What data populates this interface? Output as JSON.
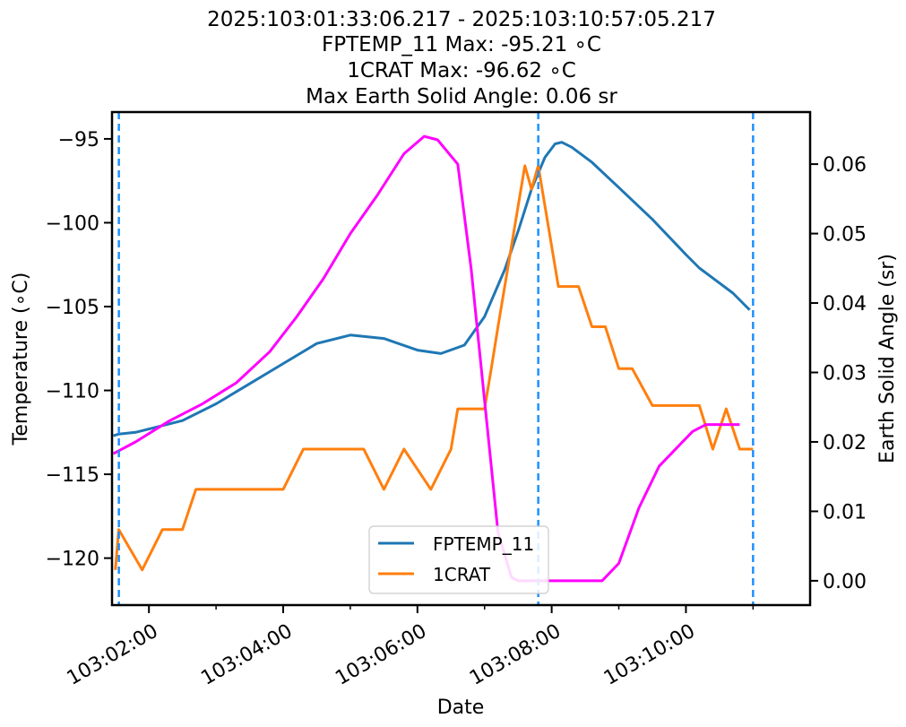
{
  "chart_data": {
    "type": "line",
    "title_lines": [
      "2025:103:01:33:06.217 - 2025:103:10:57:05.217",
      "FPTEMP_11 Max: -95.21 ∘C",
      "1CRAT Max: -96.62 ∘C",
      "Max Earth Solid Angle: 0.06 sr"
    ],
    "xlabel": "Date",
    "ylabel": "Temperature (∘C)",
    "y2label": "Earth Solid Angle (sr)",
    "xlim": [
      1.45,
      11.85
    ],
    "ylim": [
      -122.8,
      -93.4
    ],
    "y2lim": [
      -0.0035,
      0.0675
    ],
    "x_ticks": [
      {
        "value": 2,
        "label": "103:02:00"
      },
      {
        "value": 4,
        "label": "103:04:00"
      },
      {
        "value": 6,
        "label": "103:06:00"
      },
      {
        "value": 8,
        "label": "103:08:00"
      },
      {
        "value": 10,
        "label": "103:10:00"
      }
    ],
    "x_minor_ticks": [
      3,
      5,
      7,
      9,
      11
    ],
    "y_ticks": [
      {
        "value": -95,
        "label": "−95"
      },
      {
        "value": -100,
        "label": "−100"
      },
      {
        "value": -105,
        "label": "−105"
      },
      {
        "value": -110,
        "label": "−110"
      },
      {
        "value": -115,
        "label": "−115"
      },
      {
        "value": -120,
        "label": "−120"
      }
    ],
    "y2_ticks": [
      {
        "value": 0.06,
        "label": "0.06"
      },
      {
        "value": 0.05,
        "label": "0.05"
      },
      {
        "value": 0.04,
        "label": "0.04"
      },
      {
        "value": 0.03,
        "label": "0.03"
      },
      {
        "value": 0.02,
        "label": "0.02"
      },
      {
        "value": 0.01,
        "label": "0.01"
      },
      {
        "value": 0.0,
        "label": "0.00"
      }
    ],
    "vlines": [
      1.552,
      7.8,
      11.0
    ],
    "vline_color": "#1e90ff",
    "legend": {
      "placement": "lower-center",
      "entries": [
        "FPTEMP_11",
        "1CRAT"
      ]
    },
    "grid": false,
    "series": [
      {
        "name": "FPTEMP_11",
        "axis": "left",
        "color": "#1f77b4",
        "x": [
          1.47,
          1.55,
          1.8,
          2.1,
          2.5,
          3.0,
          3.5,
          4.0,
          4.5,
          5.0,
          5.5,
          6.0,
          6.35,
          6.7,
          7.0,
          7.3,
          7.5,
          7.7,
          7.9,
          8.05,
          8.15,
          8.3,
          8.6,
          9.0,
          9.5,
          10.0,
          10.2,
          10.4,
          10.7,
          10.9,
          10.95
        ],
        "y": [
          -112.7,
          -112.6,
          -112.5,
          -112.2,
          -111.8,
          -110.8,
          -109.6,
          -108.4,
          -107.2,
          -106.7,
          -106.9,
          -107.6,
          -107.8,
          -107.3,
          -105.6,
          -102.8,
          -100.5,
          -98.0,
          -96.1,
          -95.3,
          -95.2,
          -95.5,
          -96.4,
          -97.9,
          -99.8,
          -101.9,
          -102.7,
          -103.3,
          -104.2,
          -105.0,
          -105.2
        ]
      },
      {
        "name": "1CRAT",
        "axis": "left",
        "color": "#ff7f0e",
        "x": [
          1.5,
          1.55,
          1.9,
          2.2,
          2.5,
          2.7,
          3.0,
          3.5,
          3.8,
          4.0,
          4.3,
          4.8,
          5.2,
          5.5,
          5.8,
          6.2,
          6.5,
          6.6,
          6.7,
          6.9,
          7.0,
          7.1,
          7.2,
          7.3,
          7.4,
          7.5,
          7.6,
          7.7,
          7.8,
          7.9,
          8.0,
          8.1,
          8.2,
          8.4,
          8.6,
          8.8,
          9.0,
          9.2,
          9.5,
          9.8,
          10.0,
          10.2,
          10.4,
          10.6,
          10.8,
          11.0
        ],
        "y": [
          -120.7,
          -118.3,
          -120.7,
          -118.3,
          -118.3,
          -115.9,
          -115.9,
          -115.9,
          -115.9,
          -115.9,
          -113.5,
          -113.5,
          -113.5,
          -115.9,
          -113.5,
          -115.9,
          -113.5,
          -111.1,
          -111.1,
          -111.1,
          -111.1,
          -108.7,
          -106.2,
          -103.8,
          -101.4,
          -99.0,
          -96.6,
          -98.0,
          -96.6,
          -99.0,
          -101.4,
          -103.8,
          -103.8,
          -103.8,
          -106.2,
          -106.2,
          -108.7,
          -108.7,
          -110.9,
          -110.9,
          -110.9,
          -110.9,
          -113.5,
          -111.1,
          -113.5,
          -113.5
        ]
      },
      {
        "name": "",
        "axis": "right",
        "color": "#ff00ff",
        "x": [
          1.47,
          1.8,
          2.3,
          2.8,
          3.3,
          3.8,
          4.2,
          4.6,
          5.0,
          5.4,
          5.8,
          6.1,
          6.3,
          6.6,
          6.8,
          7.0,
          7.2,
          7.4,
          7.5,
          7.6,
          7.8,
          8.0,
          8.5,
          8.75,
          9.0,
          9.3,
          9.6,
          9.9,
          10.1,
          10.3,
          10.5,
          10.7,
          10.8
        ],
        "y": [
          0.0183,
          0.02,
          0.023,
          0.0255,
          0.0285,
          0.033,
          0.038,
          0.0435,
          0.05,
          0.0555,
          0.0615,
          0.064,
          0.0635,
          0.06,
          0.045,
          0.026,
          0.007,
          0.0005,
          0.0,
          0.0,
          0.0,
          0.0,
          0.0,
          0.0,
          0.0025,
          0.0105,
          0.0165,
          0.0195,
          0.0215,
          0.0225,
          0.0225,
          0.0225,
          0.0225
        ]
      }
    ]
  }
}
